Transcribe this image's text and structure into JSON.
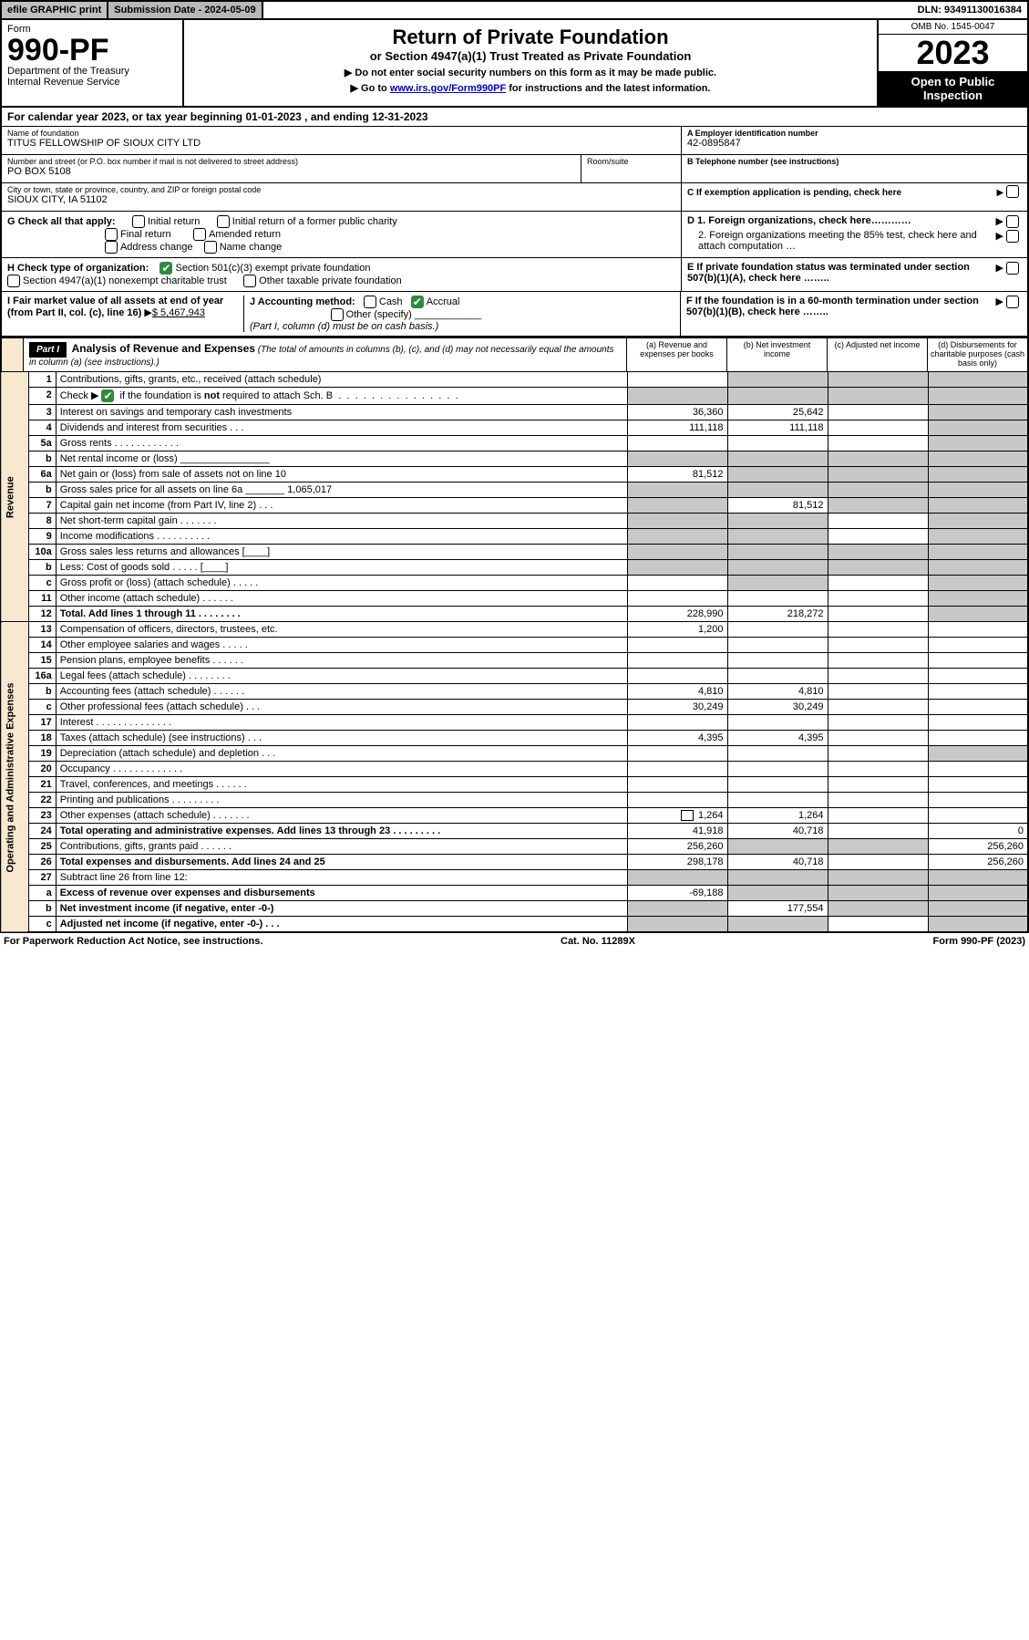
{
  "topbar": {
    "efile": "efile GRAPHIC print",
    "subdate_label": "Submission Date - 2024-05-09",
    "dln": "DLN: 93491130016384"
  },
  "header": {
    "form_word": "Form",
    "form_num": "990-PF",
    "dept": "Department of the Treasury",
    "irs": "Internal Revenue Service",
    "title": "Return of Private Foundation",
    "sub1": "or Section 4947(a)(1) Trust Treated as Private Foundation",
    "sub2a": "▶ Do not enter social security numbers on this form as it may be made public.",
    "sub2b_pre": "▶ Go to ",
    "sub2b_link": "www.irs.gov/Form990PF",
    "sub2b_post": " for instructions and the latest information.",
    "omb": "OMB No. 1545-0047",
    "year": "2023",
    "open": "Open to Public Inspection"
  },
  "calyear": "For calendar year 2023, or tax year beginning 01-01-2023                              , and ending 12-31-2023",
  "name_block": {
    "lab": "Name of foundation",
    "val": "TITUS FELLOWSHIP OF SIOUX CITY LTD"
  },
  "ein_block": {
    "lab": "A Employer identification number",
    "val": "42-0895847"
  },
  "addr_block": {
    "lab": "Number and street (or P.O. box number if mail is not delivered to street address)",
    "room_lab": "Room/suite",
    "val": "PO BOX 5108"
  },
  "phone_block": {
    "lab": "B Telephone number (see instructions)",
    "val": ""
  },
  "city_block": {
    "lab": "City or town, state or province, country, and ZIP or foreign postal code",
    "val": "SIOUX CITY, IA  51102"
  },
  "c_block": "C If exemption application is pending, check here",
  "g_label": "G Check all that apply:",
  "g_opts": {
    "a": "Initial return",
    "b": "Initial return of a former public charity",
    "c": "Final return",
    "d": "Amended return",
    "e": "Address change",
    "f": "Name change"
  },
  "d_block": {
    "d1": "D 1. Foreign organizations, check here…………",
    "d2": "2. Foreign organizations meeting the 85% test, check here and attach computation …"
  },
  "h_label": "H Check type of organization:",
  "h_opts": {
    "a": "Section 501(c)(3) exempt private foundation",
    "b": "Section 4947(a)(1) nonexempt charitable trust",
    "c": "Other taxable private foundation"
  },
  "e_block": "E If private foundation status was terminated under section 507(b)(1)(A), check here ……..",
  "i_block": {
    "label": "I Fair market value of all assets at end of year (from Part II, col. (c), line 16)",
    "val": "$  5,467,943"
  },
  "j_block": {
    "label": "J Accounting method:",
    "cash": "Cash",
    "accrual": "Accrual",
    "other": "Other (specify)",
    "note": "(Part I, column (d) must be on cash basis.)"
  },
  "f_block": "F  If the foundation is in a 60-month termination under section 507(b)(1)(B), check here ……..",
  "part1": {
    "label": "Part I",
    "title": "Analysis of Revenue and Expenses",
    "title_note": "(The total of amounts in columns (b), (c), and (d) may not necessarily equal the amounts in column (a) (see instructions).)",
    "col_a": "(a)   Revenue and expenses per books",
    "col_b": "(b)   Net investment income",
    "col_c": "(c)   Adjusted net income",
    "col_d": "(d)   Disbursements for charitable purposes (cash basis only)"
  },
  "vert_labels": {
    "rev": "Revenue",
    "exp": "Operating and Administrative Expenses"
  },
  "rows": [
    {
      "n": "1",
      "d": "Contributions, gifts, grants, etc., received (attach schedule)",
      "a": "",
      "b": "",
      "c": "",
      "dd": "",
      "grey_b": true,
      "grey_c": true,
      "grey_d": true
    },
    {
      "n": "2",
      "d": "Check ▶ [✔] if the foundation is not required to attach Sch. B  .  .  .  .  .  .  .  .  .  .  .  .  .  .  .  .  .",
      "a": "",
      "b": "",
      "c": "",
      "dd": "",
      "grey_a": true,
      "grey_b": true,
      "grey_c": true,
      "grey_d": true,
      "chk": true
    },
    {
      "n": "3",
      "d": "Interest on savings and temporary cash investments",
      "a": "36,360",
      "b": "25,642",
      "c": "",
      "dd": "",
      "grey_d": true
    },
    {
      "n": "4",
      "d": "Dividends and interest from securities  .  .  .",
      "a": "111,118",
      "b": "111,118",
      "c": "",
      "dd": "",
      "grey_d": true
    },
    {
      "n": "5a",
      "d": "Gross rents  .  .  .  .  .  .  .  .  .  .  .  .",
      "a": "",
      "b": "",
      "c": "",
      "dd": "",
      "grey_d": true
    },
    {
      "n": "b",
      "d": "Net rental income or (loss)  ________________",
      "a": "",
      "b": "",
      "c": "",
      "dd": "",
      "grey_a": true,
      "grey_b": true,
      "grey_c": true,
      "grey_d": true
    },
    {
      "n": "6a",
      "d": "Net gain or (loss) from sale of assets not on line 10",
      "a": "81,512",
      "b": "",
      "c": "",
      "dd": "",
      "grey_b": true,
      "grey_c": true,
      "grey_d": true
    },
    {
      "n": "b",
      "d": "Gross sales price for all assets on line 6a _______ 1,065,017",
      "a": "",
      "b": "",
      "c": "",
      "dd": "",
      "grey_a": true,
      "grey_b": true,
      "grey_c": true,
      "grey_d": true,
      "smallval": true
    },
    {
      "n": "7",
      "d": "Capital gain net income (from Part IV, line 2)  .  .  .",
      "a": "",
      "b": "81,512",
      "c": "",
      "dd": "",
      "grey_a": true,
      "grey_c": true,
      "grey_d": true
    },
    {
      "n": "8",
      "d": "Net short-term capital gain  .  .  .  .  .  .  .",
      "a": "",
      "b": "",
      "c": "",
      "dd": "",
      "grey_a": true,
      "grey_b": true,
      "grey_d": true
    },
    {
      "n": "9",
      "d": "Income modifications .  .  .  .  .  .  .  .  .  .",
      "a": "",
      "b": "",
      "c": "",
      "dd": "",
      "grey_a": true,
      "grey_b": true,
      "grey_d": true
    },
    {
      "n": "10a",
      "d": "Gross sales less returns and allowances  [____]",
      "a": "",
      "b": "",
      "c": "",
      "dd": "",
      "grey_a": true,
      "grey_b": true,
      "grey_c": true,
      "grey_d": true
    },
    {
      "n": "b",
      "d": "Less: Cost of goods sold  .  .  .  .  .  [____]",
      "a": "",
      "b": "",
      "c": "",
      "dd": "",
      "grey_a": true,
      "grey_b": true,
      "grey_c": true,
      "grey_d": true
    },
    {
      "n": "c",
      "d": "Gross profit or (loss) (attach schedule)  .  .  .  .  .",
      "a": "",
      "b": "",
      "c": "",
      "dd": "",
      "grey_b": true,
      "grey_d": true
    },
    {
      "n": "11",
      "d": "Other income (attach schedule)  .  .  .  .  .  .",
      "a": "",
      "b": "",
      "c": "",
      "dd": "",
      "grey_d": true
    },
    {
      "n": "12",
      "d": "Total. Add lines 1 through 11  .  .  .  .  .  .  .  .",
      "a": "228,990",
      "b": "218,272",
      "c": "",
      "dd": "",
      "bold": true,
      "grey_d": true
    },
    {
      "n": "13",
      "d": "Compensation of officers, directors, trustees, etc.",
      "a": "1,200",
      "b": "",
      "c": "",
      "dd": ""
    },
    {
      "n": "14",
      "d": "Other employee salaries and wages  .  .  .  .  .",
      "a": "",
      "b": "",
      "c": "",
      "dd": ""
    },
    {
      "n": "15",
      "d": "Pension plans, employee benefits .  .  .  .  .  .",
      "a": "",
      "b": "",
      "c": "",
      "dd": ""
    },
    {
      "n": "16a",
      "d": "Legal fees (attach schedule) .  .  .  .  .  .  .  .",
      "a": "",
      "b": "",
      "c": "",
      "dd": ""
    },
    {
      "n": "b",
      "d": "Accounting fees (attach schedule) .  .  .  .  .  .",
      "a": "4,810",
      "b": "4,810",
      "c": "",
      "dd": ""
    },
    {
      "n": "c",
      "d": "Other professional fees (attach schedule)  .  .  .",
      "a": "30,249",
      "b": "30,249",
      "c": "",
      "dd": ""
    },
    {
      "n": "17",
      "d": "Interest .  .  .  .  .  .  .  .  .  .  .  .  .  .",
      "a": "",
      "b": "",
      "c": "",
      "dd": ""
    },
    {
      "n": "18",
      "d": "Taxes (attach schedule) (see instructions)  .  .  .",
      "a": "4,395",
      "b": "4,395",
      "c": "",
      "dd": ""
    },
    {
      "n": "19",
      "d": "Depreciation (attach schedule) and depletion  .  .  .",
      "a": "",
      "b": "",
      "c": "",
      "dd": "",
      "grey_d": true
    },
    {
      "n": "20",
      "d": "Occupancy .  .  .  .  .  .  .  .  .  .  .  .  .",
      "a": "",
      "b": "",
      "c": "",
      "dd": ""
    },
    {
      "n": "21",
      "d": "Travel, conferences, and meetings .  .  .  .  .  .",
      "a": "",
      "b": "",
      "c": "",
      "dd": ""
    },
    {
      "n": "22",
      "d": "Printing and publications .  .  .  .  .  .  .  .  .",
      "a": "",
      "b": "",
      "c": "",
      "dd": ""
    },
    {
      "n": "23",
      "d": "Other expenses (attach schedule) .  .  .  .  .  .  .",
      "a": "1,264",
      "b": "1,264",
      "c": "",
      "dd": "",
      "icon": true
    },
    {
      "n": "24",
      "d": "Total operating and administrative expenses. Add lines 13 through 23  .  .  .  .  .  .  .  .  .",
      "a": "41,918",
      "b": "40,718",
      "c": "",
      "dd": "0",
      "bold": true
    },
    {
      "n": "25",
      "d": "Contributions, gifts, grants paid  .  .  .  .  .  .",
      "a": "256,260",
      "b": "",
      "c": "",
      "dd": "256,260",
      "grey_b": true,
      "grey_c": true
    },
    {
      "n": "26",
      "d": "Total expenses and disbursements. Add lines 24 and 25",
      "a": "298,178",
      "b": "40,718",
      "c": "",
      "dd": "256,260",
      "bold": true
    },
    {
      "n": "27",
      "d": "Subtract line 26 from line 12:",
      "a": "",
      "b": "",
      "c": "",
      "dd": "",
      "grey_a": true,
      "grey_b": true,
      "grey_c": true,
      "grey_d": true
    },
    {
      "n": "a",
      "d": "Excess of revenue over expenses and disbursements",
      "a": "-69,188",
      "b": "",
      "c": "",
      "dd": "",
      "bold": true,
      "grey_b": true,
      "grey_c": true,
      "grey_d": true
    },
    {
      "n": "b",
      "d": "Net investment income (if negative, enter -0-)",
      "a": "",
      "b": "177,554",
      "c": "",
      "dd": "",
      "bold": true,
      "grey_a": true,
      "grey_c": true,
      "grey_d": true
    },
    {
      "n": "c",
      "d": "Adjusted net income (if negative, enter -0-)  .  .  .",
      "a": "",
      "b": "",
      "c": "",
      "dd": "",
      "bold": true,
      "grey_a": true,
      "grey_b": true,
      "grey_d": true
    }
  ],
  "footer": {
    "left": "For Paperwork Reduction Act Notice, see instructions.",
    "center": "Cat. No. 11289X",
    "right": "Form 990-PF (2023)"
  }
}
